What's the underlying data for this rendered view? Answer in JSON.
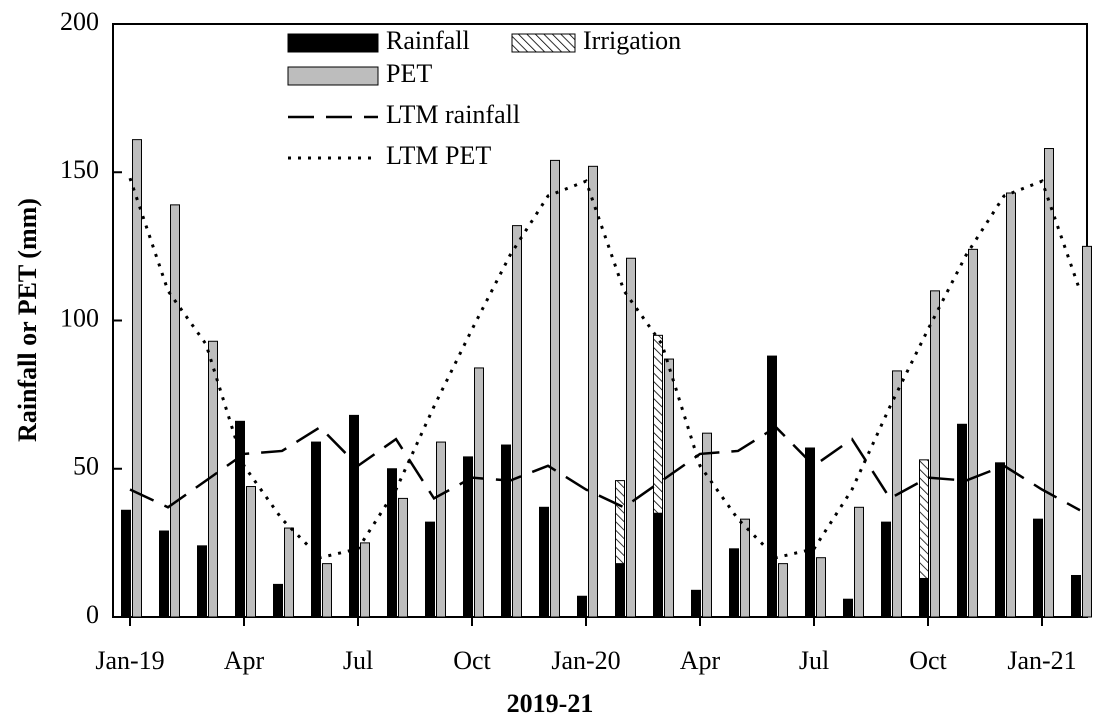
{
  "chart_data": {
    "type": "bar",
    "x_label": "2019-21",
    "y_label": "Rainfall or PET (mm)",
    "categories": [
      "Jan-19",
      null,
      null,
      "Apr",
      null,
      null,
      "Jul",
      null,
      null,
      "Oct",
      null,
      null,
      "Jan-20",
      null,
      null,
      "Apr",
      null,
      null,
      "Jul",
      null,
      null,
      "Oct",
      null,
      null,
      "Jan-21",
      null
    ],
    "ylim": [
      0,
      200
    ],
    "yticks": [
      0,
      50,
      100,
      150,
      200
    ],
    "grid": false,
    "legend": "upper left",
    "series": [
      {
        "name": "Rainfall",
        "type": "bar",
        "color": "#000000",
        "values": [
          36,
          29,
          24,
          66,
          11,
          59,
          68,
          50,
          32,
          54,
          58,
          37,
          7,
          18,
          35,
          9,
          23,
          88,
          57,
          6,
          32,
          13,
          65,
          52,
          33,
          14
        ]
      },
      {
        "name": "Irrigation",
        "type": "bar",
        "color": "#000000",
        "hatch": true,
        "values": [
          null,
          null,
          null,
          null,
          null,
          null,
          null,
          null,
          null,
          null,
          null,
          null,
          null,
          28,
          60,
          null,
          null,
          null,
          null,
          null,
          null,
          40,
          null,
          null,
          null,
          null
        ]
      },
      {
        "name": "PET",
        "type": "bar",
        "color": "#bdbdbd",
        "values": [
          161,
          139,
          93,
          44,
          30,
          18,
          25,
          40,
          59,
          84,
          132,
          154,
          152,
          121,
          87,
          62,
          33,
          18,
          20,
          37,
          83,
          110,
          124,
          143,
          158,
          125
        ]
      },
      {
        "name": "LTM rainfall",
        "type": "line",
        "color": "#000000",
        "dash": "dashed",
        "values": [
          43,
          37,
          46,
          55,
          56,
          64,
          51,
          60,
          40,
          47,
          46,
          51,
          43,
          37,
          46,
          55,
          56,
          64,
          51,
          60,
          40,
          47,
          46,
          51,
          43,
          36
        ]
      },
      {
        "name": "LTM PET",
        "type": "line",
        "color": "#000000",
        "dash": "dotted",
        "values": [
          148,
          110,
          92,
          51,
          33,
          20,
          23,
          43,
          71,
          97,
          122,
          142,
          147,
          110,
          92,
          51,
          33,
          20,
          23,
          43,
          71,
          97,
          122,
          142,
          147,
          110
        ]
      }
    ]
  }
}
